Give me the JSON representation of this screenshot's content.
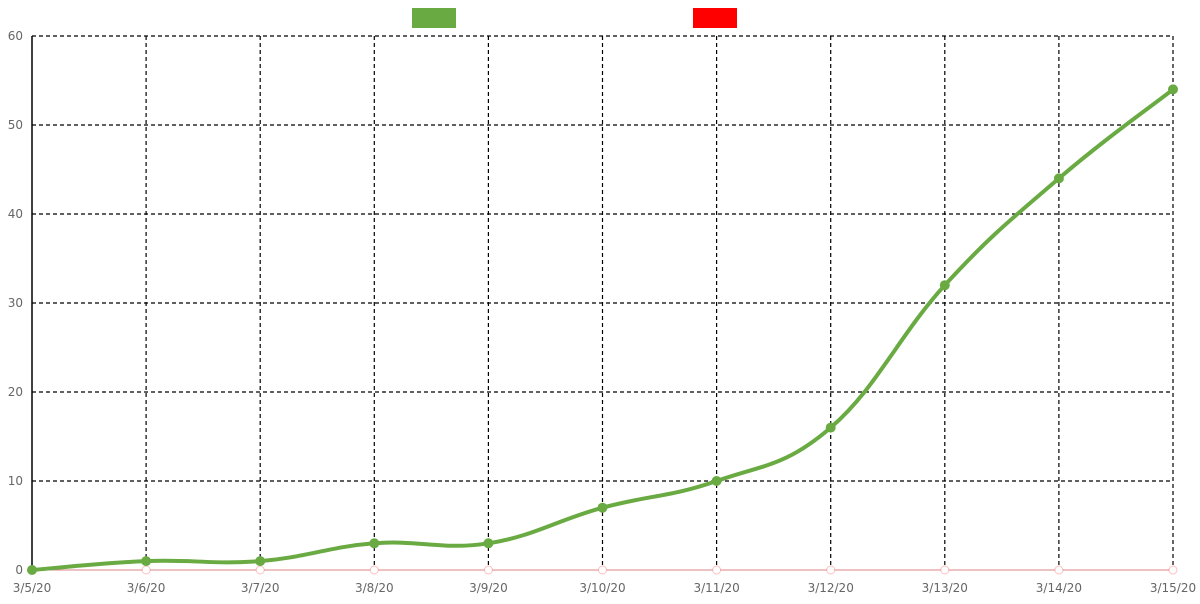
{
  "chart_data": {
    "type": "line",
    "title": "",
    "xlabel": "",
    "ylabel": "",
    "categories": [
      "3/5/20",
      "3/6/20",
      "3/7/20",
      "3/8/20",
      "3/9/20",
      "3/10/20",
      "3/11/20",
      "3/12/20",
      "3/13/20",
      "3/14/20",
      "3/15/20"
    ],
    "ylim": [
      0,
      60
    ],
    "y_ticks": [
      0,
      10,
      20,
      30,
      40,
      50,
      60
    ],
    "grid": true,
    "legend_position": "top-center",
    "series": [
      {
        "color": "#6aaa42",
        "values": [
          0,
          1,
          1,
          3,
          3,
          7,
          10,
          16,
          32,
          44,
          54
        ]
      },
      {
        "color": "#ff0000",
        "values": [
          0,
          0,
          0,
          0,
          0,
          0,
          0,
          0,
          0,
          0,
          0
        ]
      }
    ]
  }
}
